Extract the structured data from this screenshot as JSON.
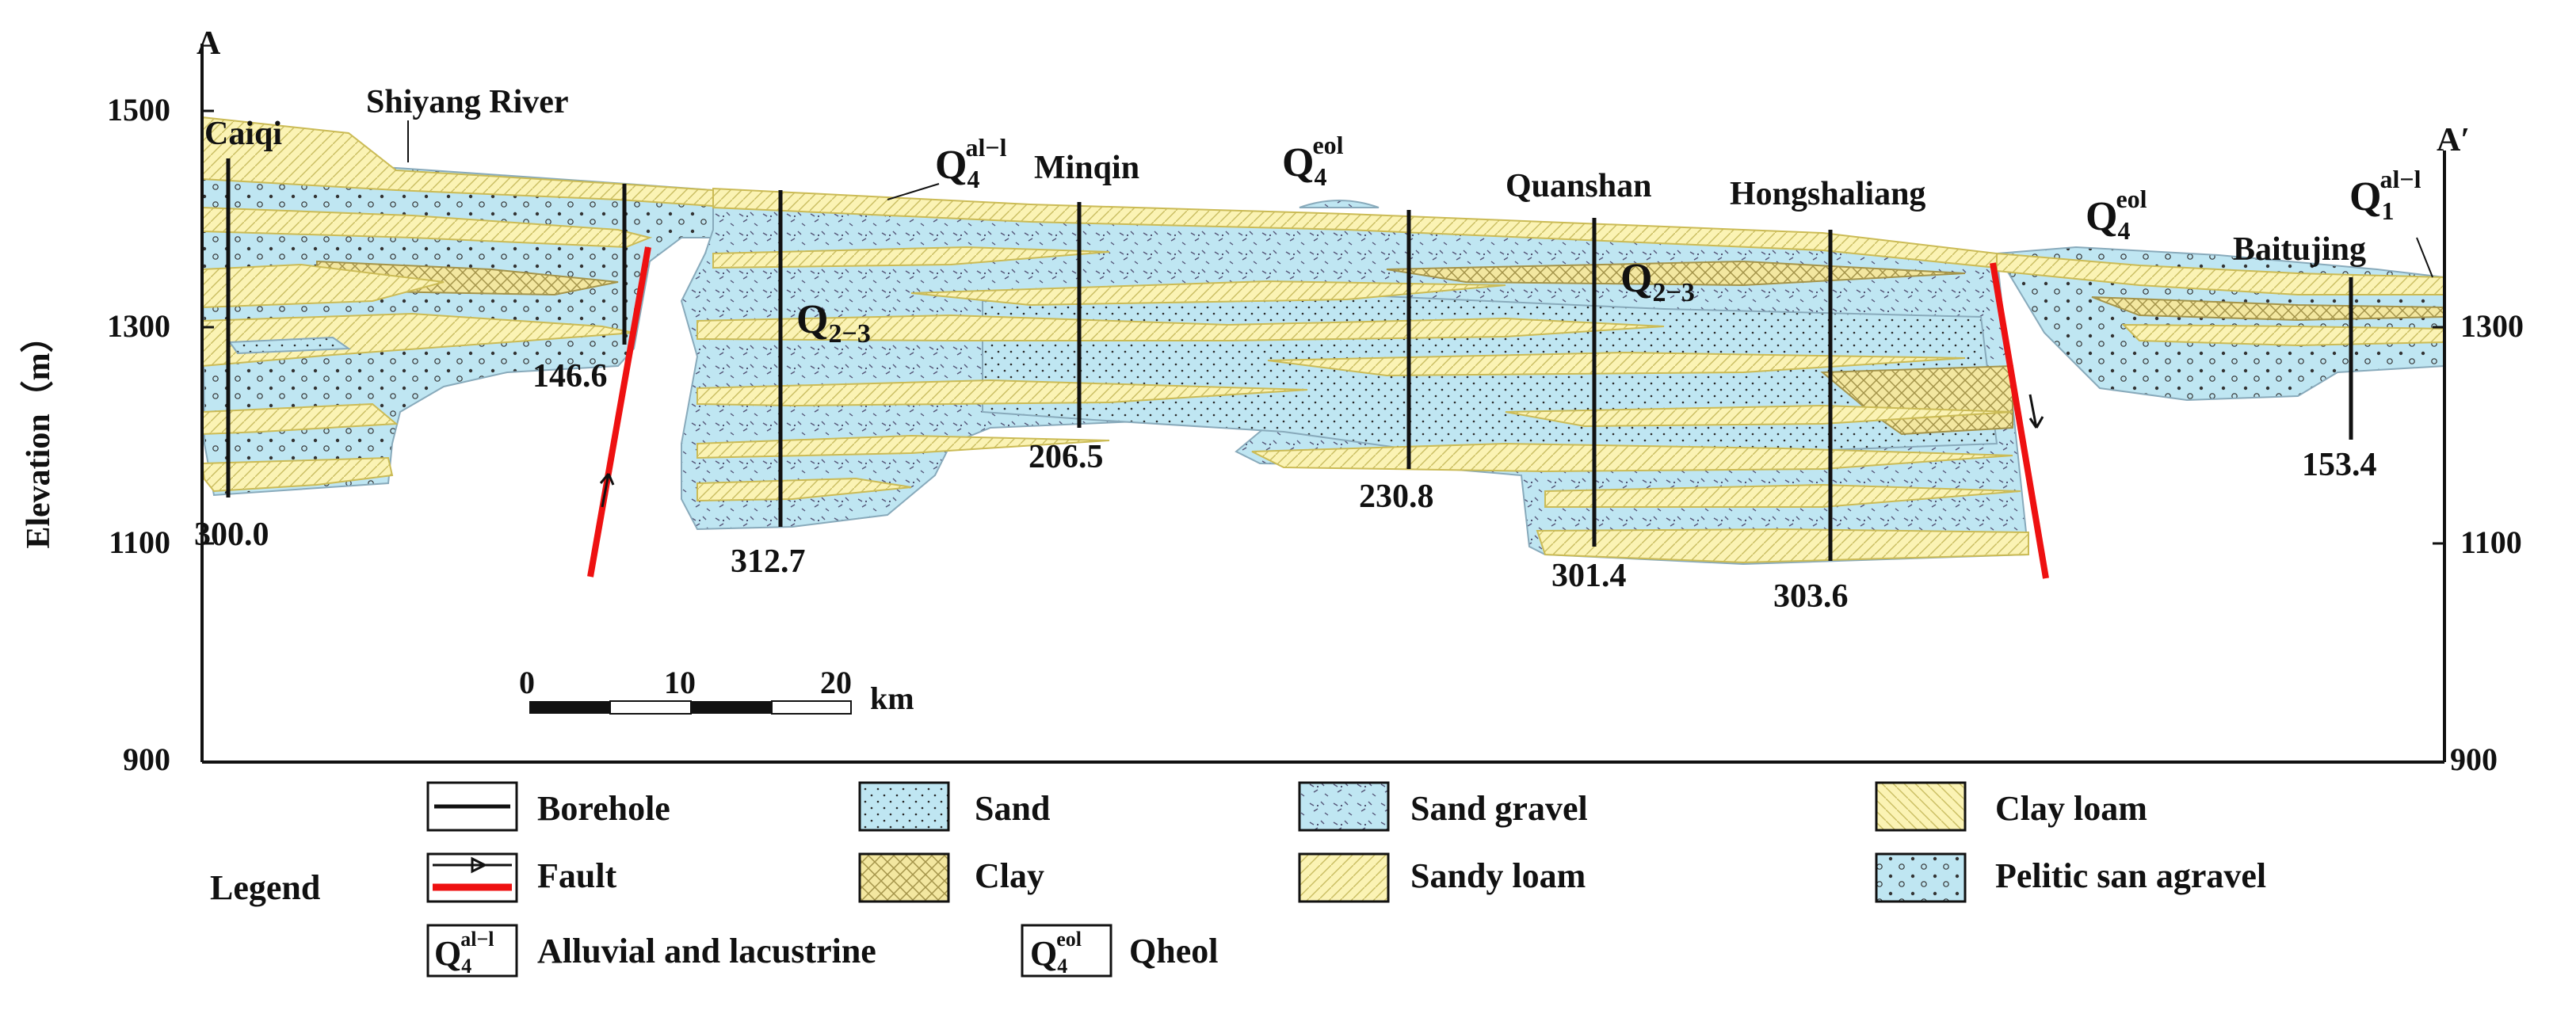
{
  "section": {
    "start_label": "A",
    "end_label": "A′",
    "axis_title": "Elevation（m）",
    "elevation_ticks": [
      "1500",
      "1300",
      "1100",
      "900"
    ]
  },
  "places": {
    "caiqi": "Caiqi",
    "shiyang": "Shiyang River",
    "minqin": "Minqin",
    "quanshan": "Quanshan",
    "hongshaliang": "Hongshaliang",
    "baitujing": "Baitujing"
  },
  "boreholes": [
    {
      "id": "caiqi",
      "depth_label": "300.0"
    },
    {
      "id": "shiyang",
      "depth_label": "146.6"
    },
    {
      "id": "west-minqin",
      "depth_label": "312.7"
    },
    {
      "id": "minqin",
      "depth_label": "206.5"
    },
    {
      "id": "central",
      "depth_label": "230.8"
    },
    {
      "id": "quanshan",
      "depth_label": "301.4"
    },
    {
      "id": "hongshaliang",
      "depth_label": "303.6"
    },
    {
      "id": "baitujing",
      "depth_label": "153.4"
    }
  ],
  "units": {
    "q4al": {
      "base": "Q",
      "sub": "4",
      "sup": "al−l"
    },
    "q4eol": {
      "base": "Q",
      "sub": "4",
      "sup": "eol"
    },
    "q23": {
      "base": "Q",
      "sub": "2−3"
    },
    "q1al": {
      "base": "Q",
      "sub": "1",
      "sup": "al−l"
    }
  },
  "scale": {
    "labels": [
      "0",
      "10",
      "20"
    ],
    "unit": "km"
  },
  "legend": {
    "title": "Legend",
    "borehole": "Borehole",
    "fault": "Fault",
    "sand": "Sand",
    "clay": "Clay",
    "sand_gravel": "Sand gravel",
    "sandy_loam": "Sandy loam",
    "clay_loam": "Clay loam",
    "pelitic": "Pelitic san agravel",
    "alluvial": "Alluvial and lacustrine",
    "qheol": "Qheol"
  },
  "colors": {
    "sand_blue": "#bfe6f2",
    "loam_yellow": "#fbf3b4",
    "fault_red": "#ee1111",
    "line_black": "#111111"
  }
}
